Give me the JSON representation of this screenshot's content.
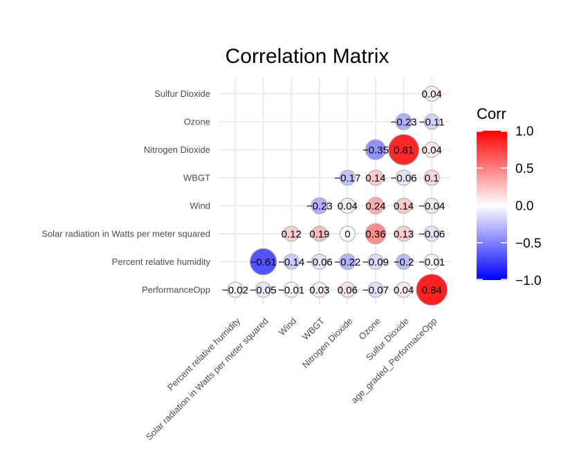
{
  "chart_data": {
    "type": "heatmap",
    "title": "Correlation Matrix",
    "x_categories": [
      "Percent relative humidity",
      "Solar radiation in Watts per meter squared",
      "Wind",
      "WBGT",
      "Nitrogen Dioxide",
      "Ozone",
      "Sulfur Dioxide",
      "age_graded_PerformaceOpp"
    ],
    "y_categories": [
      "PerformanceOpp",
      "Percent relative humidity",
      "Solar radiation in Watts per meter squared",
      "Wind",
      "WBGT",
      "Nitrogen Dioxide",
      "Ozone",
      "Sulfur Dioxide"
    ],
    "cells": [
      {
        "row": "Sulfur Dioxide",
        "col": "age_graded_PerformaceOpp",
        "value": 0.04,
        "label": "0.04"
      },
      {
        "row": "Ozone",
        "col": "Sulfur Dioxide",
        "value": -0.23,
        "label": "−0.23"
      },
      {
        "row": "Ozone",
        "col": "age_graded_PerformaceOpp",
        "value": -0.11,
        "label": "−0.11"
      },
      {
        "row": "Nitrogen Dioxide",
        "col": "Ozone",
        "value": -0.35,
        "label": "−0.35"
      },
      {
        "row": "Nitrogen Dioxide",
        "col": "Sulfur Dioxide",
        "value": 0.81,
        "label": "0.81"
      },
      {
        "row": "Nitrogen Dioxide",
        "col": "age_graded_PerformaceOpp",
        "value": 0.04,
        "label": "0.04"
      },
      {
        "row": "WBGT",
        "col": "Nitrogen Dioxide",
        "value": -0.17,
        "label": "−0.17"
      },
      {
        "row": "WBGT",
        "col": "Ozone",
        "value": 0.14,
        "label": "0.14"
      },
      {
        "row": "WBGT",
        "col": "Sulfur Dioxide",
        "value": -0.06,
        "label": "−0.06"
      },
      {
        "row": "WBGT",
        "col": "age_graded_PerformaceOpp",
        "value": 0.1,
        "label": "0.1"
      },
      {
        "row": "Wind",
        "col": "WBGT",
        "value": -0.23,
        "label": "−0.23"
      },
      {
        "row": "Wind",
        "col": "Nitrogen Dioxide",
        "value": 0.04,
        "label": "0.04"
      },
      {
        "row": "Wind",
        "col": "Ozone",
        "value": 0.24,
        "label": "0.24"
      },
      {
        "row": "Wind",
        "col": "Sulfur Dioxide",
        "value": 0.14,
        "label": "0.14"
      },
      {
        "row": "Wind",
        "col": "age_graded_PerformaceOpp",
        "value": -0.04,
        "label": "−0.04"
      },
      {
        "row": "Solar radiation in Watts per meter squared",
        "col": "Wind",
        "value": 0.12,
        "label": "0.12"
      },
      {
        "row": "Solar radiation in Watts per meter squared",
        "col": "WBGT",
        "value": 0.19,
        "label": "0.19"
      },
      {
        "row": "Solar radiation in Watts per meter squared",
        "col": "Nitrogen Dioxide",
        "value": 0,
        "label": "0"
      },
      {
        "row": "Solar radiation in Watts per meter squared",
        "col": "Ozone",
        "value": 0.36,
        "label": "0.36"
      },
      {
        "row": "Solar radiation in Watts per meter squared",
        "col": "Sulfur Dioxide",
        "value": 0.13,
        "label": "0.13"
      },
      {
        "row": "Solar radiation in Watts per meter squared",
        "col": "age_graded_PerformaceOpp",
        "value": -0.06,
        "label": "−0.06"
      },
      {
        "row": "Percent relative humidity",
        "col": "Solar radiation in Watts per meter squared",
        "value": -0.61,
        "label": "−0.61"
      },
      {
        "row": "Percent relative humidity",
        "col": "Wind",
        "value": -0.14,
        "label": "−0.14"
      },
      {
        "row": "Percent relative humidity",
        "col": "WBGT",
        "value": -0.06,
        "label": "−0.06"
      },
      {
        "row": "Percent relative humidity",
        "col": "Nitrogen Dioxide",
        "value": -0.22,
        "label": "−0.22"
      },
      {
        "row": "Percent relative humidity",
        "col": "Ozone",
        "value": -0.09,
        "label": "−0.09"
      },
      {
        "row": "Percent relative humidity",
        "col": "Sulfur Dioxide",
        "value": -0.2,
        "label": "−0.2"
      },
      {
        "row": "Percent relative humidity",
        "col": "age_graded_PerformaceOpp",
        "value": -0.01,
        "label": "−0.01"
      },
      {
        "row": "PerformanceOpp",
        "col": "Percent relative humidity",
        "value": -0.02,
        "label": "−0.02"
      },
      {
        "row": "PerformanceOpp",
        "col": "Solar radiation in Watts per meter squared",
        "value": -0.05,
        "label": "−0.05"
      },
      {
        "row": "PerformanceOpp",
        "col": "Wind",
        "value": -0.01,
        "label": "−0.01"
      },
      {
        "row": "PerformanceOpp",
        "col": "WBGT",
        "value": 0.03,
        "label": "0.03"
      },
      {
        "row": "PerformanceOpp",
        "col": "Nitrogen Dioxide",
        "value": 0.06,
        "label": "0.06"
      },
      {
        "row": "PerformanceOpp",
        "col": "Ozone",
        "value": -0.07,
        "label": "−0.07"
      },
      {
        "row": "PerformanceOpp",
        "col": "Sulfur Dioxide",
        "value": 0.04,
        "label": "0.04"
      },
      {
        "row": "PerformanceOpp",
        "col": "age_graded_PerformaceOpp",
        "value": 0.84,
        "label": "0.84"
      }
    ],
    "legend": {
      "title": "Corr",
      "ticks": [
        {
          "value": 1,
          "label": "1.0"
        },
        {
          "value": 0.5,
          "label": "0.5"
        },
        {
          "value": 0,
          "label": "0.0"
        },
        {
          "value": -0.5,
          "label": "−0.5"
        },
        {
          "value": -1,
          "label": "−1.0"
        }
      ],
      "placement": "right"
    },
    "colors": {
      "low": "#0000ff",
      "mid": "#ffffff",
      "high": "#ff0000",
      "grid": "#ebebeb",
      "outline": "#b3b3b3"
    },
    "value_range": [
      -1,
      1
    ],
    "encoding": "circle size and fill by correlation"
  }
}
